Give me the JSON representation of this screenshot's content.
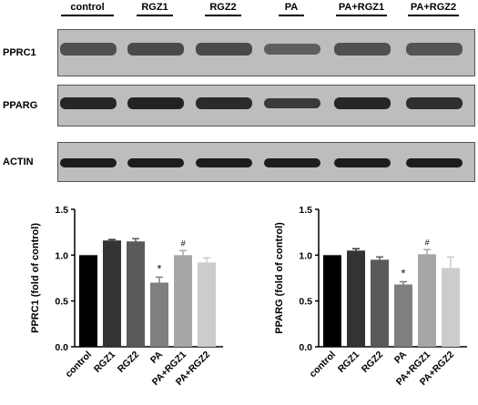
{
  "lanes": [
    "control",
    "RGZ1",
    "RGZ2",
    "PA",
    "PA+RGZ1",
    "PA+RGZ2"
  ],
  "blots": [
    {
      "label": "PPRC1",
      "bandColor": "#4a4a4a",
      "bandValues": [
        1.0,
        1.16,
        1.15,
        0.7,
        1.0,
        0.92
      ]
    },
    {
      "label": "PPARG",
      "bandColor": "#1e1e1e",
      "bandValues": [
        1.0,
        1.05,
        0.95,
        0.68,
        1.01,
        0.86
      ]
    },
    {
      "label": "ACTIN",
      "bandColor": "#141414",
      "bandValues": [
        1.0,
        1.0,
        1.0,
        1.0,
        1.0,
        1.0
      ]
    }
  ],
  "colors": {
    "bars": [
      "#000000",
      "#333333",
      "#5a5a5a",
      "#7f7f7f",
      "#a6a6a6",
      "#cccccc"
    ],
    "blot_background": "#bdbdbd"
  },
  "chart_data": [
    {
      "type": "bar",
      "ylabel": "PPRC1 (fold of control)",
      "ylim": [
        0,
        1.5
      ],
      "yticks": [
        "0.0",
        "0.5",
        "1.0",
        "1.5"
      ],
      "categories": [
        "control",
        "RGZ1",
        "RGZ2",
        "PA",
        "PA+RGZ1",
        "PA+RGZ2"
      ],
      "values": [
        1.0,
        1.16,
        1.15,
        0.7,
        1.0,
        0.92
      ],
      "errors": [
        0.0,
        0.01,
        0.03,
        0.06,
        0.05,
        0.05
      ],
      "annotations": [
        "",
        "",
        "",
        "*",
        "#",
        ""
      ]
    },
    {
      "type": "bar",
      "ylabel": "PPARG (fold of control)",
      "ylim": [
        0,
        1.5
      ],
      "yticks": [
        "0.0",
        "0.5",
        "1.0",
        "1.5"
      ],
      "categories": [
        "control",
        "RGZ1",
        "RGZ2",
        "PA",
        "PA+RGZ1",
        "PA+RGZ2"
      ],
      "values": [
        1.0,
        1.05,
        0.95,
        0.68,
        1.01,
        0.86
      ],
      "errors": [
        0.0,
        0.02,
        0.03,
        0.03,
        0.05,
        0.12
      ],
      "annotations": [
        "",
        "",
        "",
        "*",
        "#",
        ""
      ]
    }
  ]
}
